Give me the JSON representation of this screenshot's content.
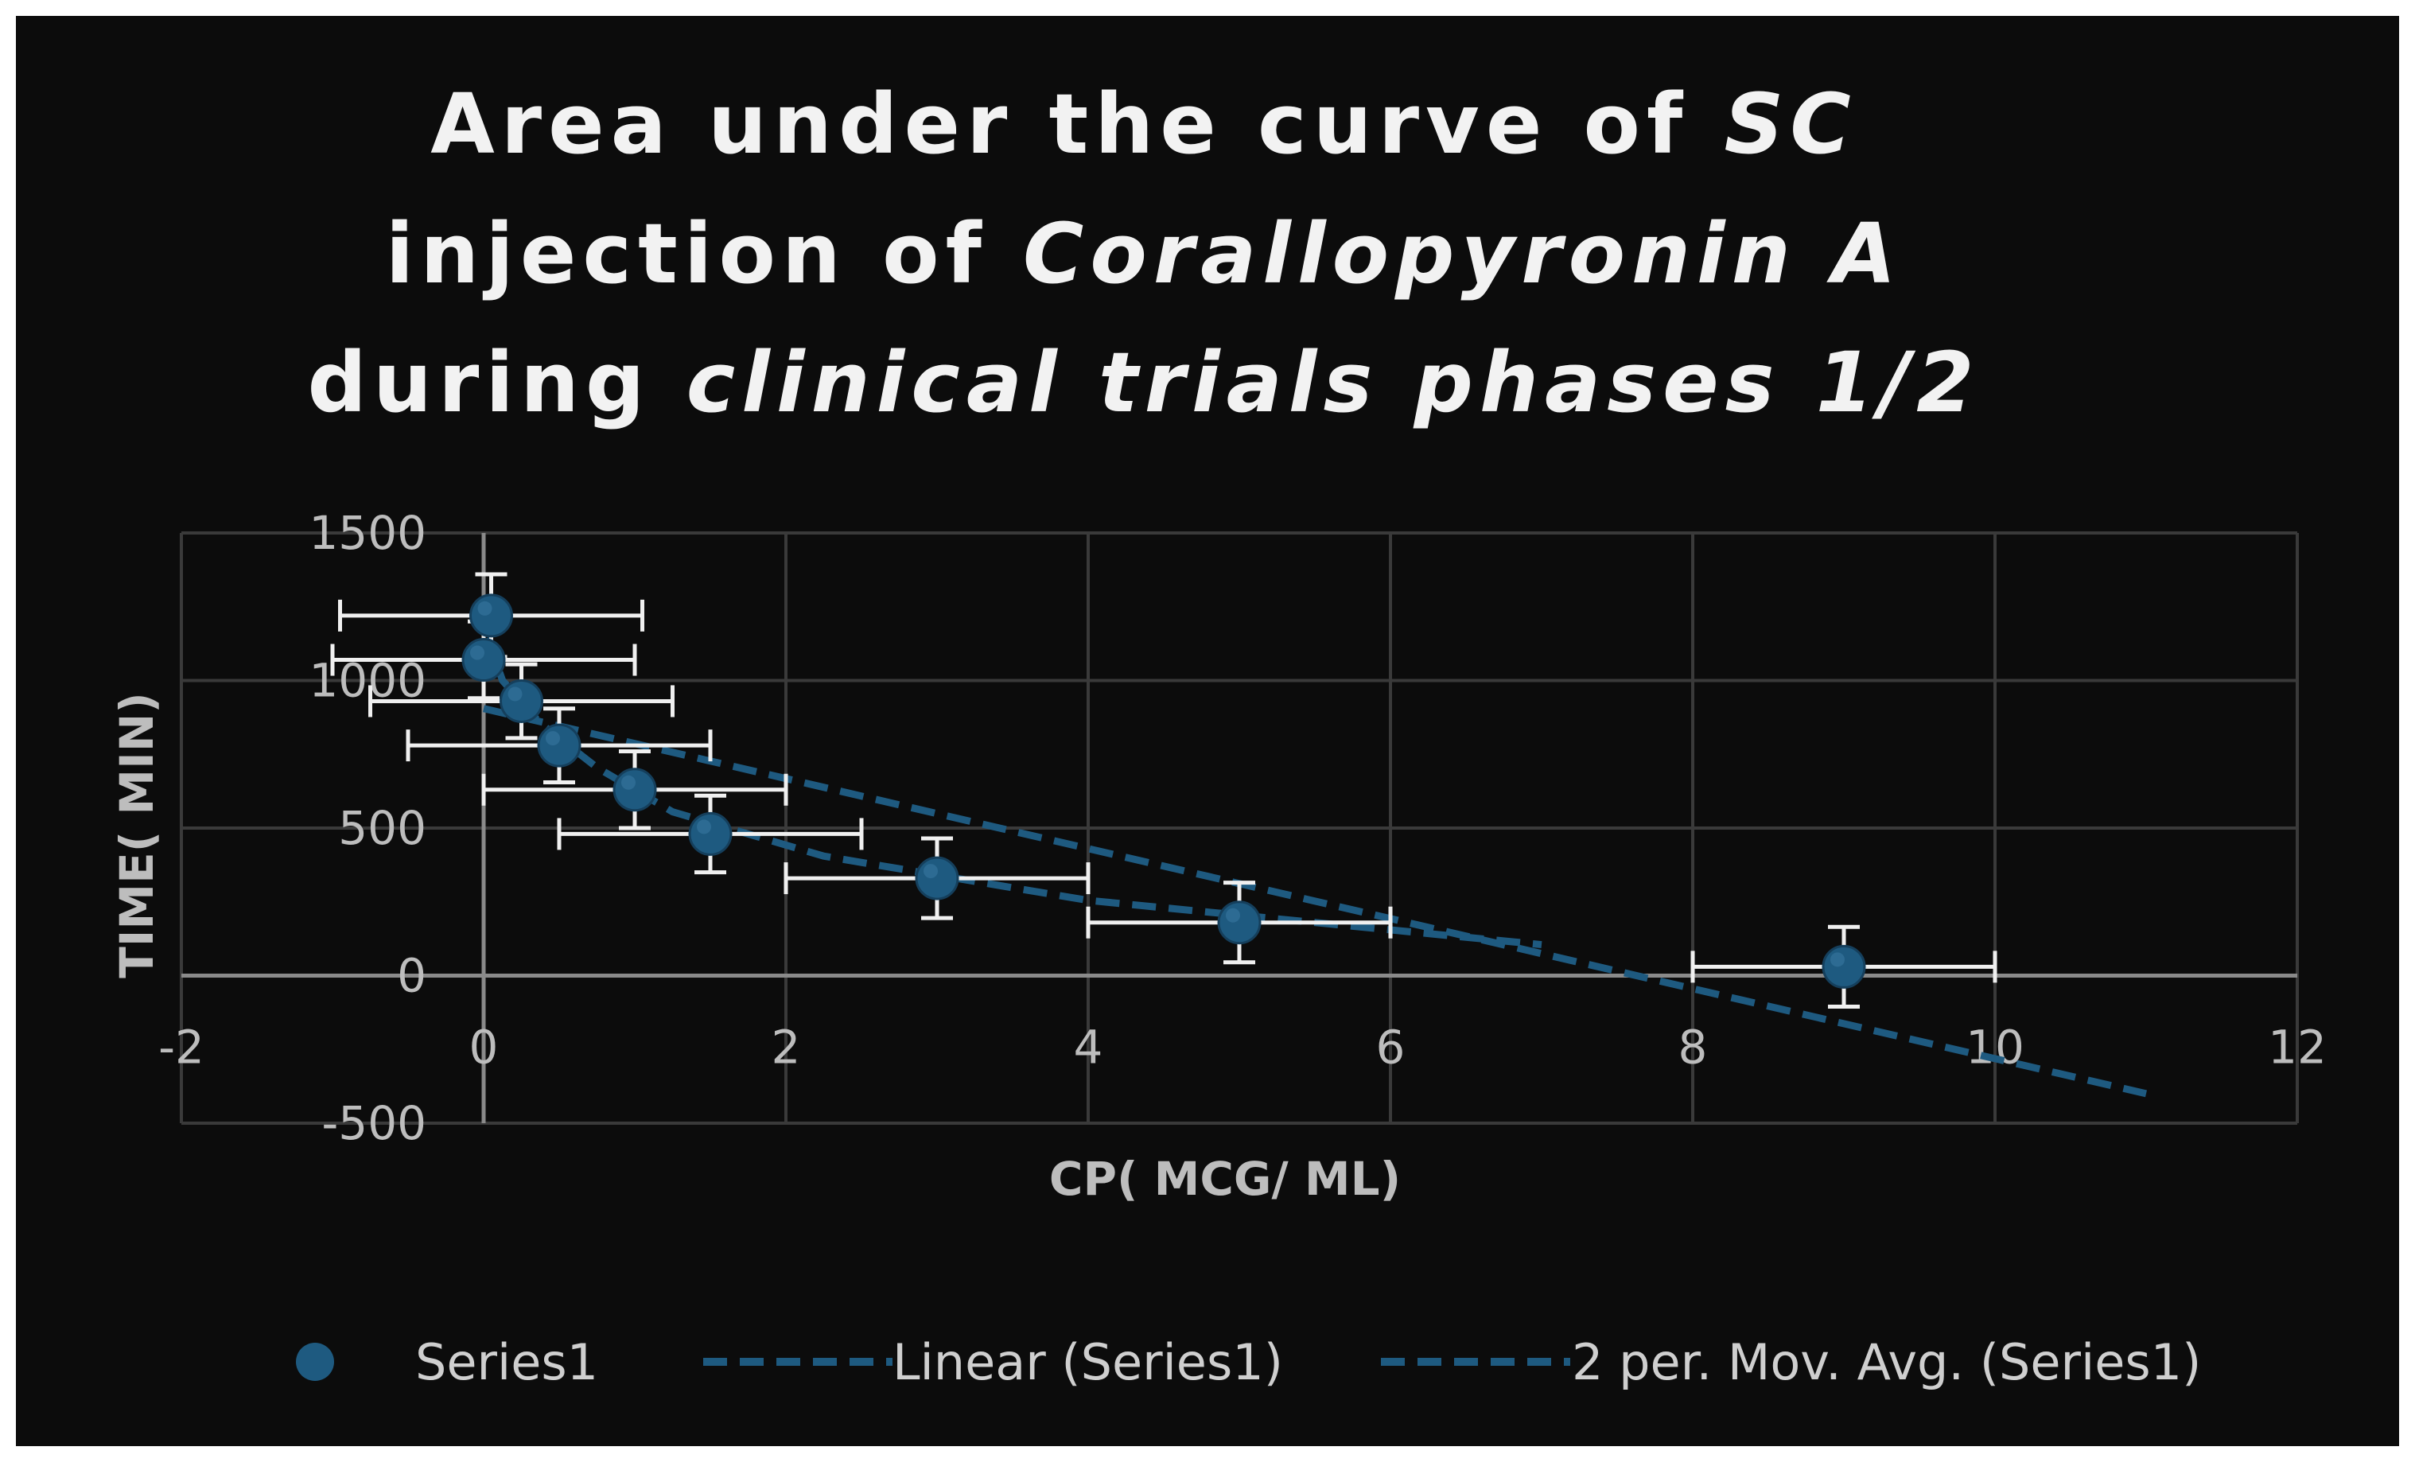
{
  "chart_data": {
    "type": "scatter",
    "title_lines": [
      [
        {
          "text": "Area under the curve of ",
          "italic": false
        },
        {
          "text": "SC",
          "italic": true
        }
      ],
      [
        {
          "text": "injection of ",
          "italic": false
        },
        {
          "text": "Corallopyronin A",
          "italic": true
        }
      ],
      [
        {
          "text": "during ",
          "italic": false
        },
        {
          "text": "clinical trials phases 1/2",
          "italic": true
        }
      ]
    ],
    "xlabel": "CP( MCG/ ML)",
    "ylabel": "TIME( MIN)",
    "xlim": [
      -2,
      12
    ],
    "ylim": [
      -500,
      1500
    ],
    "x_ticks": [
      "-2",
      "0",
      "2",
      "4",
      "6",
      "8",
      "10",
      "12"
    ],
    "x_tick_values": [
      -2,
      0,
      2,
      4,
      6,
      8,
      10,
      12
    ],
    "y_ticks": [
      "-500",
      "0",
      "500",
      "1000",
      "1500"
    ],
    "y_tick_values": [
      -500,
      0,
      500,
      1000,
      1500
    ],
    "grid": true,
    "legend_position": "bottom",
    "colors": {
      "marker": "#1e5a80",
      "trend": "#1e5a80",
      "error_bar": "#f0f0f0",
      "grid": "#3a3a3a",
      "axis": "#8a8a8a"
    },
    "series": [
      {
        "name": "Series1",
        "points": [
          {
            "x": 0.05,
            "y": 1220,
            "xerr": 1.0,
            "yerr": 140
          },
          {
            "x": 0.0,
            "y": 1070,
            "xerr": 1.0,
            "yerr": 130
          },
          {
            "x": 0.25,
            "y": 930,
            "xerr": 1.0,
            "yerr": 125
          },
          {
            "x": 0.5,
            "y": 780,
            "xerr": 1.0,
            "yerr": 125
          },
          {
            "x": 1.0,
            "y": 630,
            "xerr": 1.0,
            "yerr": 130
          },
          {
            "x": 1.5,
            "y": 480,
            "xerr": 1.0,
            "yerr": 130
          },
          {
            "x": 3.0,
            "y": 330,
            "xerr": 1.0,
            "yerr": 135
          },
          {
            "x": 5.0,
            "y": 180,
            "xerr": 1.0,
            "yerr": 135
          },
          {
            "x": 9.0,
            "y": 30,
            "xerr": 1.0,
            "yerr": 135
          }
        ]
      }
    ],
    "trendlines": [
      {
        "name": "Linear (Series1)",
        "type": "linear",
        "x": [
          0,
          11
        ],
        "y": [
          905,
          -400
        ]
      },
      {
        "name": "2 per. Mov. Avg. (Series1)",
        "type": "moving_average",
        "period": 2,
        "x": [
          0.025,
          0.125,
          0.375,
          0.75,
          1.25,
          2.25,
          4.0,
          7.0
        ],
        "y": [
          1145,
          1000,
          855,
          705,
          555,
          405,
          255,
          105
        ]
      }
    ],
    "legend": [
      "Series1",
      "Linear (Series1)",
      "2 per. Mov. Avg. (Series1)"
    ]
  }
}
